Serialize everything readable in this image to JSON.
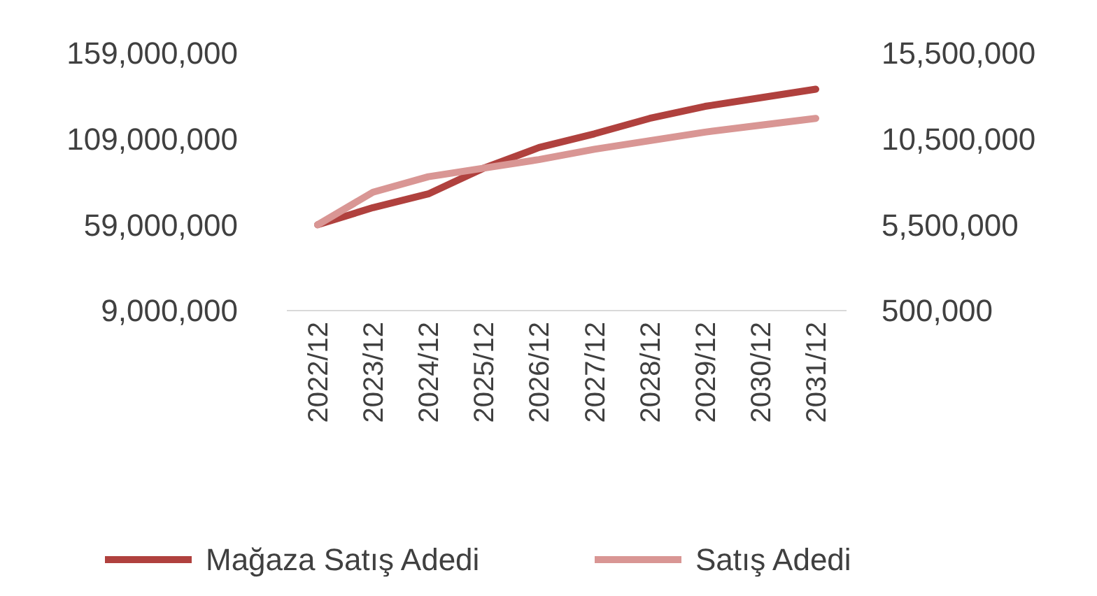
{
  "chart_data": {
    "type": "line",
    "categories": [
      "2022/12",
      "2023/12",
      "2024/12",
      "2025/12",
      "2026/12",
      "2027/12",
      "2028/12",
      "2029/12",
      "2030/12",
      "2031/12"
    ],
    "series": [
      {
        "name": "Mağaza Satış Adedi",
        "color": "#b0413e",
        "values": [
          59000000,
          69000000,
          77000000,
          92000000,
          104000000,
          112000000,
          121000000,
          128000000,
          133000000,
          138000000
        ]
      },
      {
        "name": "Satış Adedi",
        "color": "#d99694",
        "axis": "y2",
        "values": [
          5500000,
          7400000,
          8300000,
          8800000,
          9300000,
          9900000,
          10400000,
          10900000,
          11300000,
          11700000
        ]
      }
    ],
    "ylim": [
      9000000,
      159000000
    ],
    "yticks": [
      {
        "value": 9000000,
        "label": "9,000,000"
      },
      {
        "value": 59000000,
        "label": "59,000,000"
      },
      {
        "value": 109000000,
        "label": "109,000,000"
      },
      {
        "value": 159000000,
        "label": "159,000,000"
      }
    ],
    "y2lim": [
      500000,
      15500000
    ],
    "y2ticks": [
      {
        "value": 500000,
        "label": "500,000"
      },
      {
        "value": 5500000,
        "label": "5,500,000"
      },
      {
        "value": 10500000,
        "label": "10,500,000"
      },
      {
        "value": 15500000,
        "label": "15,500,000"
      }
    ],
    "legend": "bottom",
    "grid": false,
    "marker": "none",
    "line_style": "solid"
  }
}
